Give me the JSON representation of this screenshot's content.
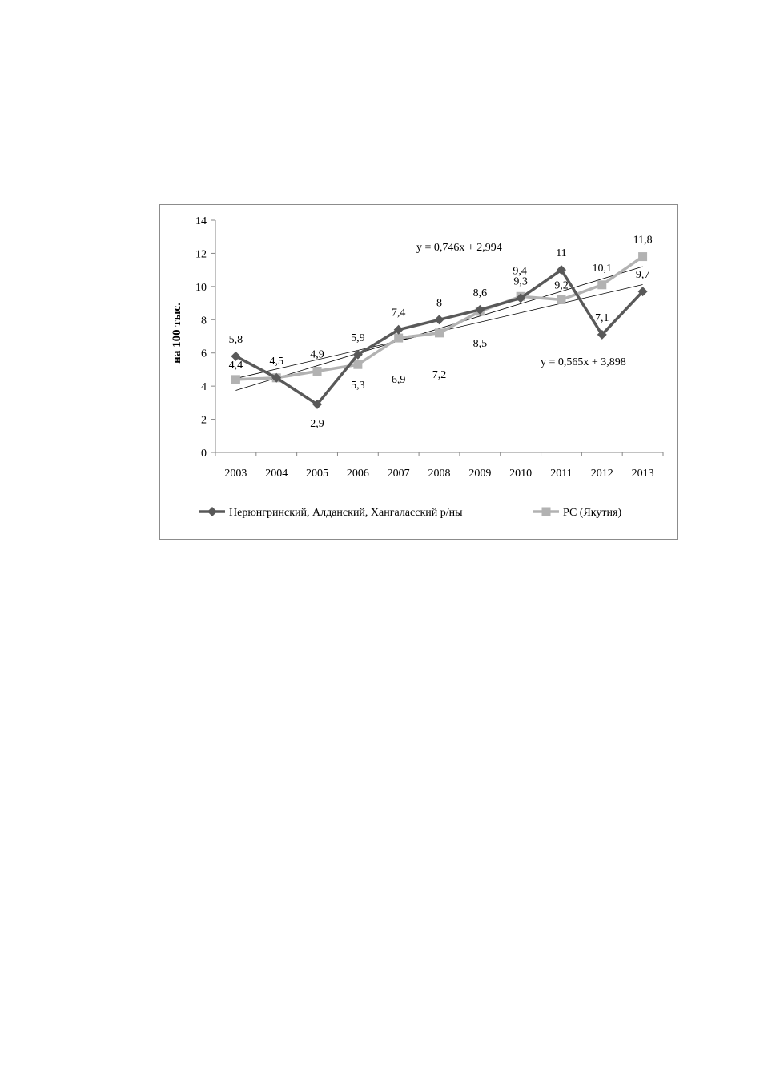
{
  "chart_data": {
    "type": "line",
    "title": "",
    "xlabel": "",
    "ylabel": "на 100 тыс.",
    "ylim": [
      0,
      14
    ],
    "yticks": [
      0,
      2,
      4,
      6,
      8,
      10,
      12,
      14
    ],
    "grid": false,
    "legend_position": "bottom",
    "categories": [
      "2003",
      "2004",
      "2005",
      "2006",
      "2007",
      "2008",
      "2009",
      "2010",
      "2011",
      "2012",
      "2013"
    ],
    "series": [
      {
        "name": "Нерюнгринский, Алданский, Хангаласский  р/ны",
        "marker": "diamond",
        "color": "#595959",
        "values": [
          5.8,
          4.5,
          2.9,
          5.9,
          7.4,
          8,
          8.6,
          9.3,
          11,
          7.1,
          9.7
        ],
        "labels": [
          "5,8",
          "4,5",
          "2,9",
          "5,9",
          "7,4",
          "8",
          "8,6",
          "9,3",
          "11",
          "7,1",
          "9,7"
        ]
      },
      {
        "name": "РС (Якутия)",
        "marker": "square",
        "color": "#b2b2b2",
        "values": [
          4.4,
          4.5,
          4.9,
          5.3,
          6.9,
          7.2,
          8.5,
          9.4,
          9.2,
          10.1,
          11.8
        ],
        "labels": [
          "4,4",
          "",
          "4,9",
          "5,3",
          "6,9",
          "7,2",
          "8,5",
          "9,4",
          "9,2",
          "10,1",
          "11,8"
        ]
      }
    ],
    "trendlines": [
      {
        "equation": "y = 0,746x + 2,994",
        "slope": 0.746,
        "intercept": 2.994
      },
      {
        "equation": "y = 0,565x + 3,898",
        "slope": 0.565,
        "intercept": 3.898
      }
    ]
  }
}
